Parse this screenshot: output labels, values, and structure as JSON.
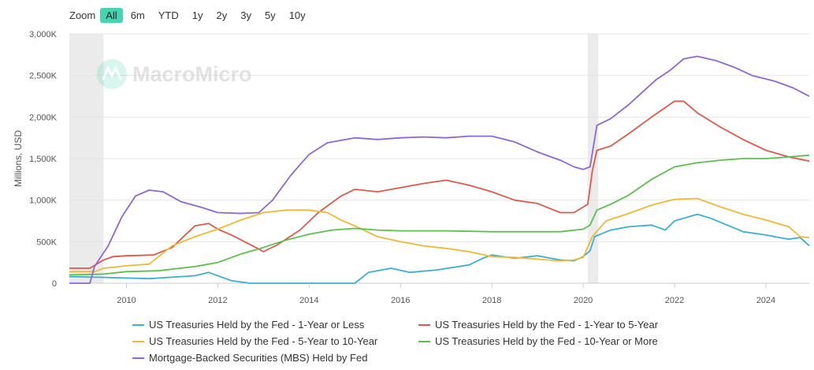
{
  "zoom": {
    "label": "Zoom",
    "buttons": [
      "All",
      "6m",
      "YTD",
      "1y",
      "2y",
      "3y",
      "5y",
      "10y"
    ],
    "active": "All"
  },
  "watermark": "MacroMicro",
  "chart_data": {
    "type": "line",
    "title": "",
    "xlabel": "",
    "ylabel": "Millions, USD",
    "xlim": [
      2008.75,
      2024.95
    ],
    "ylim": [
      0,
      3000000
    ],
    "x_ticks": [
      2010,
      2012,
      2014,
      2016,
      2018,
      2020,
      2022,
      2024
    ],
    "y_ticks": [
      0,
      500000,
      1000000,
      1500000,
      2000000,
      2500000,
      3000000
    ],
    "y_tick_labels": [
      "0",
      "500K",
      "1,000K",
      "1,500K",
      "2,000K",
      "2,500K",
      "3,000K"
    ],
    "grid": "horizontal",
    "legend_position": "bottom",
    "shaded_periods": [
      [
        2008.75,
        2009.5
      ],
      [
        2020.1,
        2020.33
      ]
    ],
    "series": [
      {
        "name": "US Treasuries Held by the Fed - 1-Year or Less",
        "color": "#3bb0d4",
        "points": [
          [
            2008.75,
            80000
          ],
          [
            2009.5,
            70000
          ],
          [
            2010.5,
            55000
          ],
          [
            2011.5,
            90000
          ],
          [
            2011.8,
            130000
          ],
          [
            2012.3,
            30000
          ],
          [
            2012.7,
            0
          ],
          [
            2015.0,
            0
          ],
          [
            2015.3,
            130000
          ],
          [
            2015.8,
            180000
          ],
          [
            2016.2,
            130000
          ],
          [
            2016.8,
            160000
          ],
          [
            2017.5,
            220000
          ],
          [
            2017.8,
            300000
          ],
          [
            2018.0,
            340000
          ],
          [
            2018.5,
            300000
          ],
          [
            2019.0,
            330000
          ],
          [
            2019.5,
            280000
          ],
          [
            2019.8,
            270000
          ],
          [
            2020.0,
            320000
          ],
          [
            2020.15,
            390000
          ],
          [
            2020.25,
            560000
          ],
          [
            2020.6,
            640000
          ],
          [
            2021.0,
            680000
          ],
          [
            2021.5,
            700000
          ],
          [
            2021.8,
            640000
          ],
          [
            2022.0,
            750000
          ],
          [
            2022.5,
            830000
          ],
          [
            2022.8,
            780000
          ],
          [
            2023.5,
            620000
          ],
          [
            2024.0,
            580000
          ],
          [
            2024.5,
            530000
          ],
          [
            2024.75,
            550000
          ],
          [
            2024.95,
            450000
          ]
        ]
      },
      {
        "name": "US Treasuries Held by the Fed - 1-Year to 5-Year",
        "color": "#e0584c",
        "points": [
          [
            2008.75,
            180000
          ],
          [
            2009.2,
            180000
          ],
          [
            2009.5,
            280000
          ],
          [
            2009.7,
            320000
          ],
          [
            2010.0,
            330000
          ],
          [
            2010.6,
            340000
          ],
          [
            2011.0,
            430000
          ],
          [
            2011.5,
            690000
          ],
          [
            2011.8,
            720000
          ],
          [
            2012.0,
            650000
          ],
          [
            2012.3,
            580000
          ],
          [
            2012.8,
            440000
          ],
          [
            2013.0,
            380000
          ],
          [
            2013.3,
            460000
          ],
          [
            2013.8,
            640000
          ],
          [
            2014.2,
            850000
          ],
          [
            2014.7,
            1050000
          ],
          [
            2015.0,
            1130000
          ],
          [
            2015.5,
            1100000
          ],
          [
            2016.0,
            1150000
          ],
          [
            2016.5,
            1200000
          ],
          [
            2017.0,
            1240000
          ],
          [
            2017.5,
            1180000
          ],
          [
            2018.0,
            1100000
          ],
          [
            2018.5,
            1000000
          ],
          [
            2019.0,
            960000
          ],
          [
            2019.5,
            850000
          ],
          [
            2019.8,
            850000
          ],
          [
            2020.1,
            950000
          ],
          [
            2020.2,
            1350000
          ],
          [
            2020.3,
            1600000
          ],
          [
            2020.6,
            1650000
          ],
          [
            2021.0,
            1800000
          ],
          [
            2021.5,
            2000000
          ],
          [
            2022.0,
            2190000
          ],
          [
            2022.2,
            2190000
          ],
          [
            2022.5,
            2050000
          ],
          [
            2023.0,
            1880000
          ],
          [
            2023.5,
            1730000
          ],
          [
            2024.0,
            1600000
          ],
          [
            2024.5,
            1520000
          ],
          [
            2024.95,
            1470000
          ]
        ]
      },
      {
        "name": "US Treasuries Held by the Fed - 5-Year to 10-Year",
        "color": "#f0b935",
        "points": [
          [
            2008.75,
            140000
          ],
          [
            2009.3,
            140000
          ],
          [
            2009.5,
            180000
          ],
          [
            2010.0,
            210000
          ],
          [
            2010.5,
            230000
          ],
          [
            2011.0,
            450000
          ],
          [
            2011.5,
            560000
          ],
          [
            2012.0,
            650000
          ],
          [
            2012.5,
            760000
          ],
          [
            2013.0,
            850000
          ],
          [
            2013.5,
            880000
          ],
          [
            2014.0,
            880000
          ],
          [
            2014.4,
            850000
          ],
          [
            2014.7,
            760000
          ],
          [
            2015.0,
            690000
          ],
          [
            2015.5,
            560000
          ],
          [
            2016.0,
            500000
          ],
          [
            2016.5,
            450000
          ],
          [
            2017.0,
            420000
          ],
          [
            2017.5,
            380000
          ],
          [
            2018.0,
            320000
          ],
          [
            2018.5,
            310000
          ],
          [
            2019.0,
            290000
          ],
          [
            2019.5,
            270000
          ],
          [
            2019.8,
            280000
          ],
          [
            2020.0,
            310000
          ],
          [
            2020.2,
            560000
          ],
          [
            2020.5,
            750000
          ],
          [
            2021.0,
            840000
          ],
          [
            2021.5,
            940000
          ],
          [
            2022.0,
            1010000
          ],
          [
            2022.5,
            1020000
          ],
          [
            2023.0,
            920000
          ],
          [
            2023.5,
            830000
          ],
          [
            2024.0,
            760000
          ],
          [
            2024.5,
            680000
          ],
          [
            2024.75,
            560000
          ],
          [
            2024.95,
            550000
          ]
        ]
      },
      {
        "name": "US Treasuries Held by the Fed - 10-Year or More",
        "color": "#5bc04e",
        "points": [
          [
            2008.75,
            100000
          ],
          [
            2009.5,
            110000
          ],
          [
            2010.0,
            140000
          ],
          [
            2010.7,
            150000
          ],
          [
            2011.5,
            200000
          ],
          [
            2012.0,
            250000
          ],
          [
            2012.5,
            350000
          ],
          [
            2013.0,
            430000
          ],
          [
            2013.5,
            520000
          ],
          [
            2014.0,
            590000
          ],
          [
            2014.5,
            640000
          ],
          [
            2015.0,
            660000
          ],
          [
            2015.5,
            640000
          ],
          [
            2016.0,
            630000
          ],
          [
            2017.0,
            630000
          ],
          [
            2018.0,
            620000
          ],
          [
            2019.0,
            620000
          ],
          [
            2019.5,
            620000
          ],
          [
            2020.0,
            650000
          ],
          [
            2020.15,
            700000
          ],
          [
            2020.3,
            880000
          ],
          [
            2020.6,
            950000
          ],
          [
            2021.0,
            1060000
          ],
          [
            2021.5,
            1250000
          ],
          [
            2022.0,
            1400000
          ],
          [
            2022.5,
            1450000
          ],
          [
            2023.0,
            1480000
          ],
          [
            2023.5,
            1500000
          ],
          [
            2024.0,
            1500000
          ],
          [
            2024.5,
            1520000
          ],
          [
            2024.95,
            1540000
          ]
        ]
      },
      {
        "name": "Mortgage-Backed Securities (MBS) Held by Fed",
        "color": "#8a68d8",
        "points": [
          [
            2008.75,
            0
          ],
          [
            2009.2,
            0
          ],
          [
            2009.3,
            200000
          ],
          [
            2009.6,
            450000
          ],
          [
            2009.9,
            800000
          ],
          [
            2010.2,
            1050000
          ],
          [
            2010.5,
            1120000
          ],
          [
            2010.8,
            1100000
          ],
          [
            2011.2,
            980000
          ],
          [
            2011.6,
            920000
          ],
          [
            2012.0,
            850000
          ],
          [
            2012.5,
            840000
          ],
          [
            2012.9,
            850000
          ],
          [
            2013.2,
            1000000
          ],
          [
            2013.6,
            1300000
          ],
          [
            2014.0,
            1550000
          ],
          [
            2014.4,
            1690000
          ],
          [
            2015.0,
            1750000
          ],
          [
            2015.5,
            1730000
          ],
          [
            2016.0,
            1750000
          ],
          [
            2016.5,
            1760000
          ],
          [
            2017.0,
            1750000
          ],
          [
            2017.5,
            1770000
          ],
          [
            2018.0,
            1770000
          ],
          [
            2018.5,
            1700000
          ],
          [
            2019.0,
            1580000
          ],
          [
            2019.5,
            1480000
          ],
          [
            2019.8,
            1400000
          ],
          [
            2020.0,
            1370000
          ],
          [
            2020.15,
            1400000
          ],
          [
            2020.3,
            1900000
          ],
          [
            2020.6,
            1980000
          ],
          [
            2021.0,
            2150000
          ],
          [
            2021.3,
            2300000
          ],
          [
            2021.6,
            2450000
          ],
          [
            2021.9,
            2560000
          ],
          [
            2022.2,
            2700000
          ],
          [
            2022.5,
            2730000
          ],
          [
            2022.9,
            2680000
          ],
          [
            2023.3,
            2600000
          ],
          [
            2023.7,
            2500000
          ],
          [
            2024.2,
            2430000
          ],
          [
            2024.6,
            2350000
          ],
          [
            2024.95,
            2250000
          ]
        ]
      }
    ]
  }
}
